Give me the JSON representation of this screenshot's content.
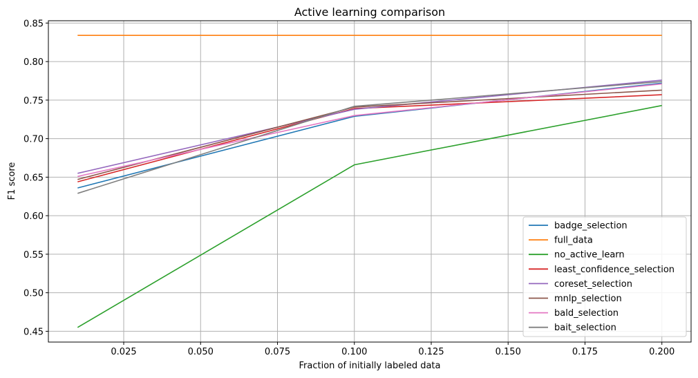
{
  "chart_data": {
    "type": "line",
    "title": "Active learning comparison",
    "xlabel": "Fraction of initially labeled data",
    "ylabel": "F1 score",
    "x": [
      0.01,
      0.1,
      0.2
    ],
    "xlim": [
      0.0005,
      0.2095
    ],
    "ylim": [
      0.436,
      0.853
    ],
    "xticks": [
      0.025,
      0.05,
      0.075,
      0.1,
      0.125,
      0.15,
      0.175,
      0.2
    ],
    "xtick_labels": [
      "0.025",
      "0.050",
      "0.075",
      "0.100",
      "0.125",
      "0.150",
      "0.175",
      "0.200"
    ],
    "yticks": [
      0.45,
      0.5,
      0.55,
      0.6,
      0.65,
      0.7,
      0.75,
      0.8,
      0.85
    ],
    "ytick_labels": [
      "0.45",
      "0.50",
      "0.55",
      "0.60",
      "0.65",
      "0.70",
      "0.75",
      "0.80",
      "0.85"
    ],
    "grid": true,
    "legend_position": "lower-right",
    "series": [
      {
        "name": "badge_selection",
        "color": "#1f77b4",
        "values": [
          0.636,
          0.729,
          0.772
        ]
      },
      {
        "name": "full_data",
        "color": "#ff7f0e",
        "values": [
          0.834,
          0.834,
          0.834
        ]
      },
      {
        "name": "no_active_learn",
        "color": "#2ca02c",
        "values": [
          0.455,
          0.666,
          0.743
        ]
      },
      {
        "name": "least_confidence_selection",
        "color": "#d62728",
        "values": [
          0.644,
          0.739,
          0.757
        ]
      },
      {
        "name": "coreset_selection",
        "color": "#9467bd",
        "values": [
          0.655,
          0.738,
          0.776
        ]
      },
      {
        "name": "mnlp_selection",
        "color": "#8c564b",
        "values": [
          0.647,
          0.741,
          0.763
        ]
      },
      {
        "name": "bald_selection",
        "color": "#e377c2",
        "values": [
          0.651,
          0.73,
          0.771
        ]
      },
      {
        "name": "bait_selection",
        "color": "#7f7f7f",
        "values": [
          0.629,
          0.742,
          0.774
        ]
      }
    ]
  }
}
